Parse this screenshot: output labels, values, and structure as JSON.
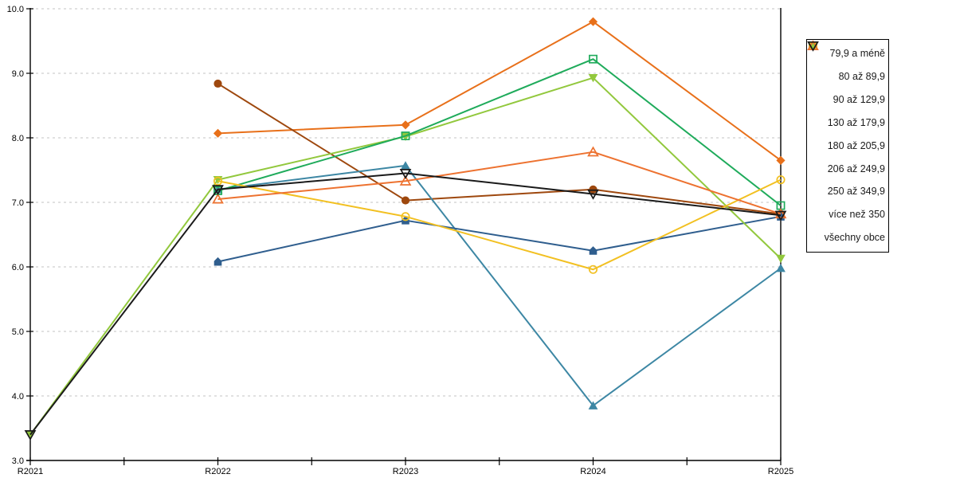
{
  "chart_data": {
    "type": "line",
    "x": [
      "R2021",
      "R2022",
      "R2023",
      "R2024",
      "R2025"
    ],
    "xlabel": "",
    "ylabel": "",
    "ylim": [
      3.0,
      10.0
    ],
    "ytick_labels": [
      "3.0",
      "4.0",
      "5.0",
      "6.0",
      "7.0",
      "8.0",
      "9.0",
      "10.0"
    ],
    "grid": "horizontal dashed gridlines at each 1.0",
    "grid_color": "#c3c3c3",
    "axis_color": "#000000",
    "legend_position": "right, boxed",
    "series": [
      {
        "name": "79,9 a méně",
        "marker": "diamond",
        "marker_fill": "filled",
        "color": "#E8701A",
        "values": [
          null,
          8.07,
          8.2,
          9.8,
          7.65
        ]
      },
      {
        "name": "80 až 89,9",
        "marker": "circle",
        "marker_fill": "filled",
        "color": "#9E480E",
        "values": [
          null,
          8.84,
          7.03,
          7.2,
          6.82
        ]
      },
      {
        "name": "90 až 129,9",
        "marker": "triangle-up",
        "marker_fill": "filled",
        "color": "#3D87A4",
        "values": [
          null,
          7.2,
          7.57,
          3.85,
          5.98
        ]
      },
      {
        "name": "130 až 179,9",
        "marker": "pentagon",
        "marker_fill": "filled",
        "color": "#2F5E8E",
        "values": [
          null,
          6.08,
          6.72,
          6.25,
          6.78
        ]
      },
      {
        "name": "180 až 205,9",
        "marker": "triangle-down",
        "marker_fill": "filled",
        "color": "#92C83D",
        "values": [
          3.4,
          7.35,
          8.02,
          8.93,
          6.13
        ]
      },
      {
        "name": "206 až 249,9",
        "marker": "square",
        "marker_fill": "open",
        "color": "#1FAB5B",
        "values": [
          null,
          7.18,
          8.03,
          9.22,
          6.95
        ]
      },
      {
        "name": "250 až 349,9",
        "marker": "circle",
        "marker_fill": "open",
        "color": "#F2C021",
        "values": [
          null,
          7.33,
          6.78,
          5.96,
          7.35
        ]
      },
      {
        "name": "více než 350",
        "marker": "triangle-up",
        "marker_fill": "open",
        "color": "#ED7230",
        "values": [
          null,
          7.05,
          7.33,
          7.78,
          6.82
        ]
      },
      {
        "name": "všechny obce",
        "marker": "triangle-down",
        "marker_fill": "open",
        "color": "#1A1A1A",
        "values": [
          3.4,
          7.2,
          7.45,
          7.13,
          6.8
        ]
      }
    ]
  }
}
